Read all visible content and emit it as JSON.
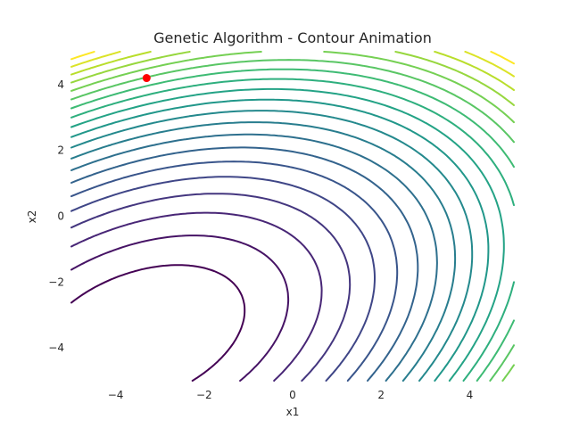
{
  "chart_data": {
    "type": "contour",
    "title": "Genetic Algorithm - Contour Animation",
    "xlabel": "x1",
    "ylabel": "x2",
    "xlim": [
      -5,
      5
    ],
    "ylim": [
      -5,
      5
    ],
    "xticks": [
      -4,
      -2,
      0,
      2,
      4
    ],
    "yticks": [
      -4,
      -2,
      0,
      2,
      4
    ],
    "xtick_labels": [
      "−4",
      "−2",
      "0",
      "2",
      "4"
    ],
    "ytick_labels": [
      "−4",
      "−2",
      "0",
      "2",
      "4"
    ],
    "grid": false,
    "colormap": "viridis",
    "contour_count": 20,
    "current_best_point": {
      "x": -3.3,
      "y": 4.2,
      "color": "#ff0000"
    }
  }
}
